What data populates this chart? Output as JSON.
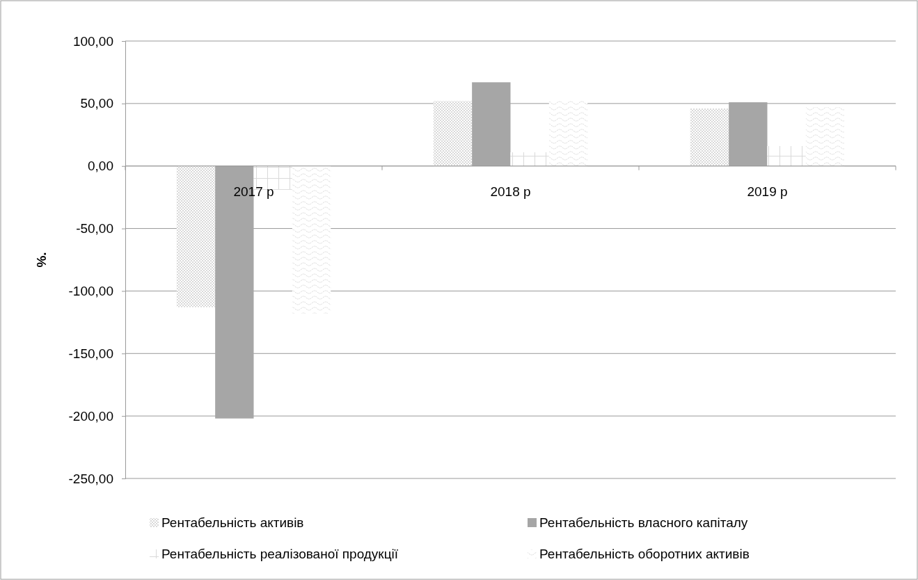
{
  "chart_data": {
    "type": "bar",
    "ylabel": "%.",
    "categories": [
      "2017 р",
      "2018 р",
      "2019 р"
    ],
    "series": [
      {
        "name": "Рентабельність активів",
        "color": "#d9d9d9",
        "values": [
          -113,
          52,
          46
        ]
      },
      {
        "name": "Рентабельність власного капіталу",
        "color": "#a6a6a6",
        "values": [
          -202,
          67,
          51
        ]
      },
      {
        "name": "Рентабельність реалізованої продукції",
        "color": "#d9d9d9",
        "values": [
          -19,
          11,
          16
        ]
      },
      {
        "name": "Рентабельність оборотних активів",
        "color": "#d9d9d9",
        "values": [
          -118,
          53,
          47
        ]
      }
    ],
    "ylim": [
      -250,
      100
    ],
    "yticks": [
      {
        "value": -250,
        "label": "-250,00"
      },
      {
        "value": -200,
        "label": "-200,00"
      },
      {
        "value": -150,
        "label": "-150,00"
      },
      {
        "value": -100,
        "label": "-100,00"
      },
      {
        "value": -50,
        "label": "-50,00"
      },
      {
        "value": 0,
        "label": "0,00"
      },
      {
        "value": 50,
        "label": "50,00"
      },
      {
        "value": 100,
        "label": "100,00"
      }
    ],
    "grid": "y",
    "legend": "bottom"
  }
}
